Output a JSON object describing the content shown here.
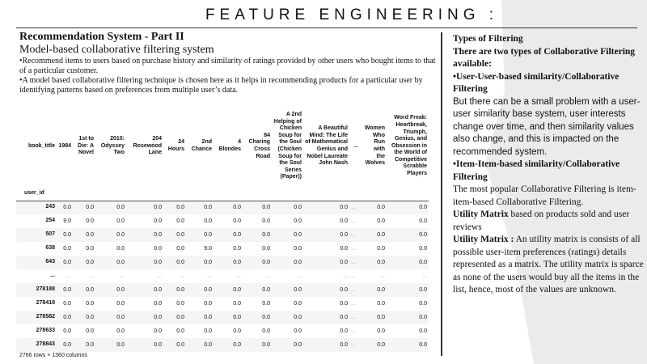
{
  "title": "FEATURE ENGINEERING :",
  "left": {
    "heading": "Recommendation System - Part II",
    "subheading": "Model-based collaborative filtering system",
    "bullet1": "•Recommend items to users based on purchase history and similarity of ratings provided by other users who bought items to that of a particular customer.",
    "bullet2": "•A model based collaborative filtering technique is chosen here as it helps in recommending products for a particular user by identifying patterns based on preferences from multiple user’s data."
  },
  "table": {
    "columns_label": "book_title",
    "index_label": "user_id",
    "columns": [
      "1984",
      "1st to Die: A Novel",
      "2010: Odyssey Two",
      "204 Rosewood Lane",
      "24 Hours",
      "2nd Chance",
      "4 Blondes",
      "84 Charing Cross Road",
      "A 2nd Helping of Chicken Soup for the Soul (Chicken Soup for the Soul Series (Paper))",
      "A Beautiful Mind: The Life of Mathematical Genius and Nobel Laureate John Nash",
      "...",
      "Women Who Run with the Wolves",
      "Word Freak: Heartbreak, Triumph, Genius, and Obsession in the World of Competitive Scrabble Players"
    ],
    "rows": [
      {
        "id": "243",
        "values": [
          "0.0",
          "0.0",
          "0.0",
          "0.0",
          "0.0",
          "0.0",
          "0.0",
          "0.0",
          "0.0",
          "0.0",
          "...",
          "0.0",
          "0.0"
        ]
      },
      {
        "id": "254",
        "values": [
          "9.0",
          "0.0",
          "0.0",
          "0.0",
          "0.0",
          "0.0",
          "0.0",
          "0.0",
          "0.0",
          "0.0",
          "...",
          "0.0",
          "0.0"
        ]
      },
      {
        "id": "507",
        "values": [
          "0.0",
          "0.0",
          "0.0",
          "0.0",
          "0.0",
          "0.0",
          "0.0",
          "0.0",
          "0.0",
          "0.0",
          "...",
          "0.0",
          "0.0"
        ]
      },
      {
        "id": "638",
        "values": [
          "0.0",
          "0.0",
          "0.0",
          "0.0",
          "0.0",
          "9.0",
          "0.0",
          "0.0",
          "0.0",
          "0.0",
          "...",
          "0.0",
          "0.0"
        ]
      },
      {
        "id": "643",
        "values": [
          "0.0",
          "0.0",
          "0.0",
          "0.0",
          "0.0",
          "0.0",
          "0.0",
          "0.0",
          "0.0",
          "0.0",
          "...",
          "0.0",
          "0.0"
        ]
      },
      {
        "id": "...",
        "values": [
          "...",
          "...",
          "...",
          "...",
          "...",
          "...",
          "...",
          "...",
          "...",
          "...",
          "...",
          "...",
          "..."
        ]
      },
      {
        "id": "278188",
        "values": [
          "0.0",
          "0.0",
          "0.0",
          "0.0",
          "0.0",
          "0.0",
          "0.0",
          "0.0",
          "0.0",
          "0.0",
          "...",
          "0.0",
          "0.0"
        ]
      },
      {
        "id": "278418",
        "values": [
          "0.0",
          "0.0",
          "0.0",
          "0.0",
          "0.0",
          "0.0",
          "0.0",
          "0.0",
          "0.0",
          "0.0",
          "...",
          "0.0",
          "0.0"
        ]
      },
      {
        "id": "278582",
        "values": [
          "0.0",
          "0.0",
          "0.0",
          "0.0",
          "0.0",
          "0.0",
          "0.0",
          "0.0",
          "0.0",
          "0.0",
          "...",
          "0.0",
          "0.0"
        ]
      },
      {
        "id": "278633",
        "values": [
          "0.0",
          "0.0",
          "0.0",
          "0.0",
          "0.0",
          "0.0",
          "0.0",
          "0.0",
          "0.0",
          "0.0",
          "...",
          "0.0",
          "0.0"
        ]
      },
      {
        "id": "278843",
        "values": [
          "0.0",
          "0.0",
          "0.0",
          "0.0",
          "0.0",
          "0.0",
          "0.0",
          "0.0",
          "0.0",
          "0.0",
          "...",
          "0.0",
          "0.0"
        ]
      }
    ],
    "footer": "2766 rows × 1360 columns"
  },
  "right": {
    "types_heading": "Types of Filtering",
    "types_intro": "There are two types of Collaborative Filtering available:",
    "user_user_heading": "•User-User-based similarity/Collaborative Filtering",
    "user_user_text": "But there can be a small problem with a user-user similarity base system, user interests change over time, and then similarity values also change, and this is impacted on the recommended system.",
    "item_item_heading": "•Item-Item-based similarity/Collaborative Filtering",
    "item_item_text": "The most popular Collaborative Filtering is item-item-based Collaborative Filtering.",
    "utility_label1": "Utility Matrix",
    "utility_text1": " based on products sold and user reviews",
    "utility_label2": "Utility Matrix :",
    "utility_text2": " An utility matrix is consists of all possible user-item preferences (ratings) details represented as a matrix. The utility matrix is sparce as none of the users would buy all the items in the list, hence, most of the values are unknown."
  }
}
